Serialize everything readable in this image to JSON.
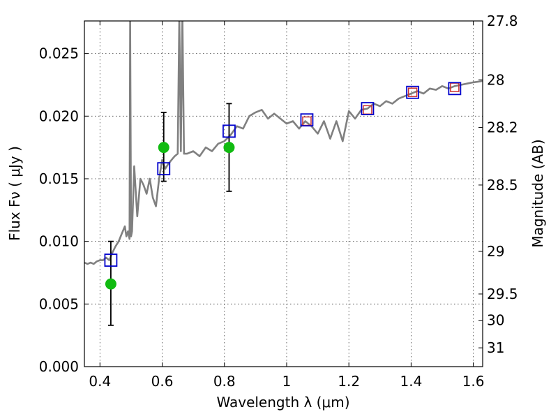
{
  "chart_data": {
    "type": "scatter",
    "title": "",
    "xlabel": "Wavelength  λ (μm)",
    "ylabel": "Flux  Fν  ( μJy )",
    "y2label": "Magnitude (AB)",
    "xlim": [
      0.35,
      1.63
    ],
    "ylim": [
      0.0,
      0.0276
    ],
    "grid": true,
    "x_ticks": [
      0.4,
      0.6,
      0.8,
      1.0,
      1.2,
      1.4,
      1.6
    ],
    "x_tick_labels": [
      "0.4",
      "0.6",
      "0.8",
      "1",
      "1.2",
      "1.4",
      "1.6"
    ],
    "y_ticks": [
      0.0,
      0.005,
      0.01,
      0.015,
      0.02,
      0.025
    ],
    "y_tick_labels": [
      "0.000",
      "0.005",
      "0.010",
      "0.015",
      "0.020",
      "0.025"
    ],
    "y2_ticks": [
      {
        "flux": 0.0276,
        "label": "27.8"
      },
      {
        "flux": 0.0229,
        "label": "28"
      },
      {
        "flux": 0.0191,
        "label": "28.2"
      },
      {
        "flux": 0.0145,
        "label": "28.5"
      },
      {
        "flux": 0.0092,
        "label": "29"
      },
      {
        "flux": 0.0058,
        "label": "29.5"
      },
      {
        "flux": 0.0037,
        "label": "30"
      },
      {
        "flux": 0.0015,
        "label": "31"
      }
    ],
    "colors": {
      "template": "#808080",
      "model_squares": "#0000cc",
      "observed": "#11bb11",
      "errorbar": "#000000",
      "red_squares": "#cc3333"
    },
    "series": [
      {
        "kind": "template_spectrum",
        "x": [
          0.35,
          0.36,
          0.37,
          0.38,
          0.39,
          0.4,
          0.41,
          0.42,
          0.43,
          0.44,
          0.45,
          0.46,
          0.47,
          0.48,
          0.485,
          0.49,
          0.495,
          0.497,
          0.5,
          0.503,
          0.51,
          0.52,
          0.53,
          0.54,
          0.55,
          0.56,
          0.57,
          0.58,
          0.59,
          0.6,
          0.61,
          0.62,
          0.63,
          0.64,
          0.65,
          0.655,
          0.66,
          0.665,
          0.67,
          0.68,
          0.7,
          0.72,
          0.74,
          0.76,
          0.78,
          0.8,
          0.82,
          0.84,
          0.86,
          0.88,
          0.9,
          0.92,
          0.94,
          0.96,
          0.98,
          1.0,
          1.02,
          1.04,
          1.06,
          1.08,
          1.1,
          1.12,
          1.14,
          1.16,
          1.18,
          1.2,
          1.22,
          1.24,
          1.26,
          1.28,
          1.3,
          1.32,
          1.34,
          1.36,
          1.38,
          1.4,
          1.42,
          1.44,
          1.46,
          1.48,
          1.5,
          1.52,
          1.54,
          1.56,
          1.58,
          1.6,
          1.63
        ],
        "y": [
          0.0083,
          0.0082,
          0.0083,
          0.0082,
          0.0084,
          0.0085,
          0.0085,
          0.0087,
          0.0085,
          0.0091,
          0.0096,
          0.01,
          0.0106,
          0.0112,
          0.0104,
          0.0108,
          0.0102,
          0.028,
          0.0104,
          0.0108,
          0.016,
          0.012,
          0.015,
          0.0145,
          0.0138,
          0.015,
          0.0135,
          0.0128,
          0.015,
          0.0165,
          0.0158,
          0.0162,
          0.0165,
          0.0168,
          0.017,
          0.028,
          0.0172,
          0.028,
          0.017,
          0.017,
          0.0172,
          0.0168,
          0.0175,
          0.0172,
          0.0178,
          0.018,
          0.0185,
          0.0192,
          0.019,
          0.02,
          0.0203,
          0.0205,
          0.0198,
          0.0202,
          0.0198,
          0.0194,
          0.0196,
          0.019,
          0.0196,
          0.0192,
          0.0186,
          0.0196,
          0.0182,
          0.0196,
          0.018,
          0.0204,
          0.0198,
          0.0205,
          0.0206,
          0.021,
          0.0208,
          0.0212,
          0.021,
          0.0214,
          0.0216,
          0.0218,
          0.022,
          0.0218,
          0.0222,
          0.0221,
          0.0224,
          0.0222,
          0.0224,
          0.0225,
          0.0226,
          0.0227,
          0.0228
        ]
      },
      {
        "kind": "model_squares",
        "x": [
          0.435,
          0.605,
          0.815,
          1.065,
          1.26,
          1.405,
          1.54
        ],
        "y": [
          0.0085,
          0.0158,
          0.0188,
          0.0197,
          0.0206,
          0.0219,
          0.0222
        ]
      },
      {
        "kind": "observed_points",
        "x": [
          0.435,
          0.605,
          0.815
        ],
        "y": [
          0.0066,
          0.0175,
          0.0175
        ],
        "err_low": [
          0.0033,
          0.0148,
          0.014
        ],
        "err_high": [
          0.01,
          0.0203,
          0.021
        ]
      },
      {
        "kind": "red_squares",
        "x": [
          1.065,
          1.26,
          1.405,
          1.54
        ],
        "y": [
          0.0196,
          0.0205,
          0.0219,
          0.0223
        ]
      }
    ]
  }
}
